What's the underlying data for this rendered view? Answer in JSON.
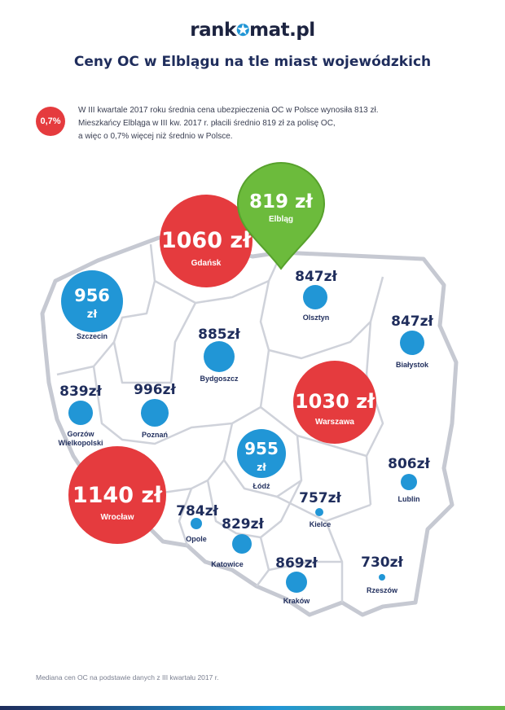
{
  "header": {
    "logo_left": "rank",
    "logo_right": "mat.pl",
    "title": "Ceny OC w Elblągu na tle miast wojewódzkich"
  },
  "intro": {
    "badge": "0,7%",
    "lines": [
      "W III kwartale 2017 roku średnia cena ubezpieczenia OC w Polsce wynosiła 813 zł.",
      "Mieszkańcy Elbląga w III kw. 2017 r. płacili średnio 819 zł za polisę OC,",
      "a więc o 0,7% więcej niż średnio w Polsce."
    ]
  },
  "cities": {
    "gdansk": {
      "name": "Gdańsk",
      "price": "1060 zł"
    },
    "elblag": {
      "name": "Elbląg",
      "price": "819 zł"
    },
    "szczecin": {
      "name": "Szczecin",
      "price_value": "956",
      "price_unit": "zł"
    },
    "olsztyn": {
      "name": "Olsztyn",
      "price": "847zł"
    },
    "bialystok": {
      "name": "Białystok",
      "price": "847zł"
    },
    "bydgoszcz": {
      "name": "Bydgoszcz",
      "price": "885zł"
    },
    "gorzow": {
      "name_line1": "Gorzów",
      "name_line2": "Wielkopolski",
      "price": "839zł"
    },
    "poznan": {
      "name": "Poznań",
      "price": "996zł"
    },
    "warszawa": {
      "name": "Warszawa",
      "price": "1030 zł"
    },
    "lodz": {
      "name": "Łódź",
      "price_value": "955",
      "price_unit": "zł"
    },
    "wroclaw": {
      "name": "Wrocław",
      "price": "1140 zł"
    },
    "opole": {
      "name": "Opole",
      "price": "784zł"
    },
    "katowice": {
      "name": "Katowice",
      "price": "829zł"
    },
    "kielce": {
      "name": "Kielce",
      "price": "757zł"
    },
    "lublin": {
      "name": "Lublin",
      "price": "806zł"
    },
    "krakow": {
      "name": "Kraków",
      "price": "869zł"
    },
    "rzeszow": {
      "name": "Rzeszów",
      "price": "730zł"
    }
  },
  "colors": {
    "above_average": "#e53b3e",
    "below_average": "#2196d6",
    "highlight": "#6cbb3c",
    "text_dark": "#1f2d5c"
  },
  "footer": {
    "note": "Mediana cen OC na podstawie danych z III kwartału 2017 r."
  }
}
